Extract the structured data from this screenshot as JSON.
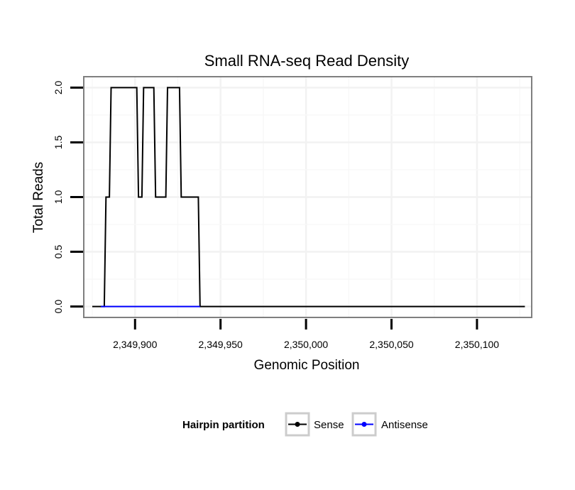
{
  "chart_data": {
    "type": "line",
    "title": "Small RNA-seq Read Density",
    "xlabel": "Genomic Position",
    "ylabel": "Total Reads",
    "xlim": [
      2349870,
      2350132
    ],
    "ylim": [
      -0.1,
      2.1
    ],
    "x_ticks": [
      {
        "value": 2349900,
        "label": "2,349,900"
      },
      {
        "value": 2349950,
        "label": "2,349,950"
      },
      {
        "value": 2350000,
        "label": "2,350,000"
      },
      {
        "value": 2350050,
        "label": "2,350,050"
      },
      {
        "value": 2350100,
        "label": "2,350,100"
      }
    ],
    "y_ticks": [
      {
        "value": 0.0,
        "label": "0.0"
      },
      {
        "value": 0.5,
        "label": "0.5"
      },
      {
        "value": 1.0,
        "label": "1.0"
      },
      {
        "value": 1.5,
        "label": "1.5"
      },
      {
        "value": 2.0,
        "label": "2.0"
      }
    ],
    "grid": true,
    "legend": {
      "title": "Hairpin partition",
      "position": "bottom"
    },
    "series": [
      {
        "name": "Sense",
        "color": "#000000",
        "points": [
          [
            2349875,
            0
          ],
          [
            2349882,
            0
          ],
          [
            2349883,
            1
          ],
          [
            2349885,
            1
          ],
          [
            2349886,
            2
          ],
          [
            2349901,
            2
          ],
          [
            2349902,
            1
          ],
          [
            2349904,
            1
          ],
          [
            2349905,
            2
          ],
          [
            2349911,
            2
          ],
          [
            2349912,
            1
          ],
          [
            2349918,
            1
          ],
          [
            2349919,
            2
          ],
          [
            2349926,
            2
          ],
          [
            2349927,
            1
          ],
          [
            2349937,
            1
          ],
          [
            2349938,
            0
          ],
          [
            2350128,
            0
          ]
        ]
      },
      {
        "name": "Antisense",
        "color": "#0000ff",
        "points": [
          [
            2349880,
            0
          ],
          [
            2349938,
            0
          ]
        ]
      }
    ]
  }
}
